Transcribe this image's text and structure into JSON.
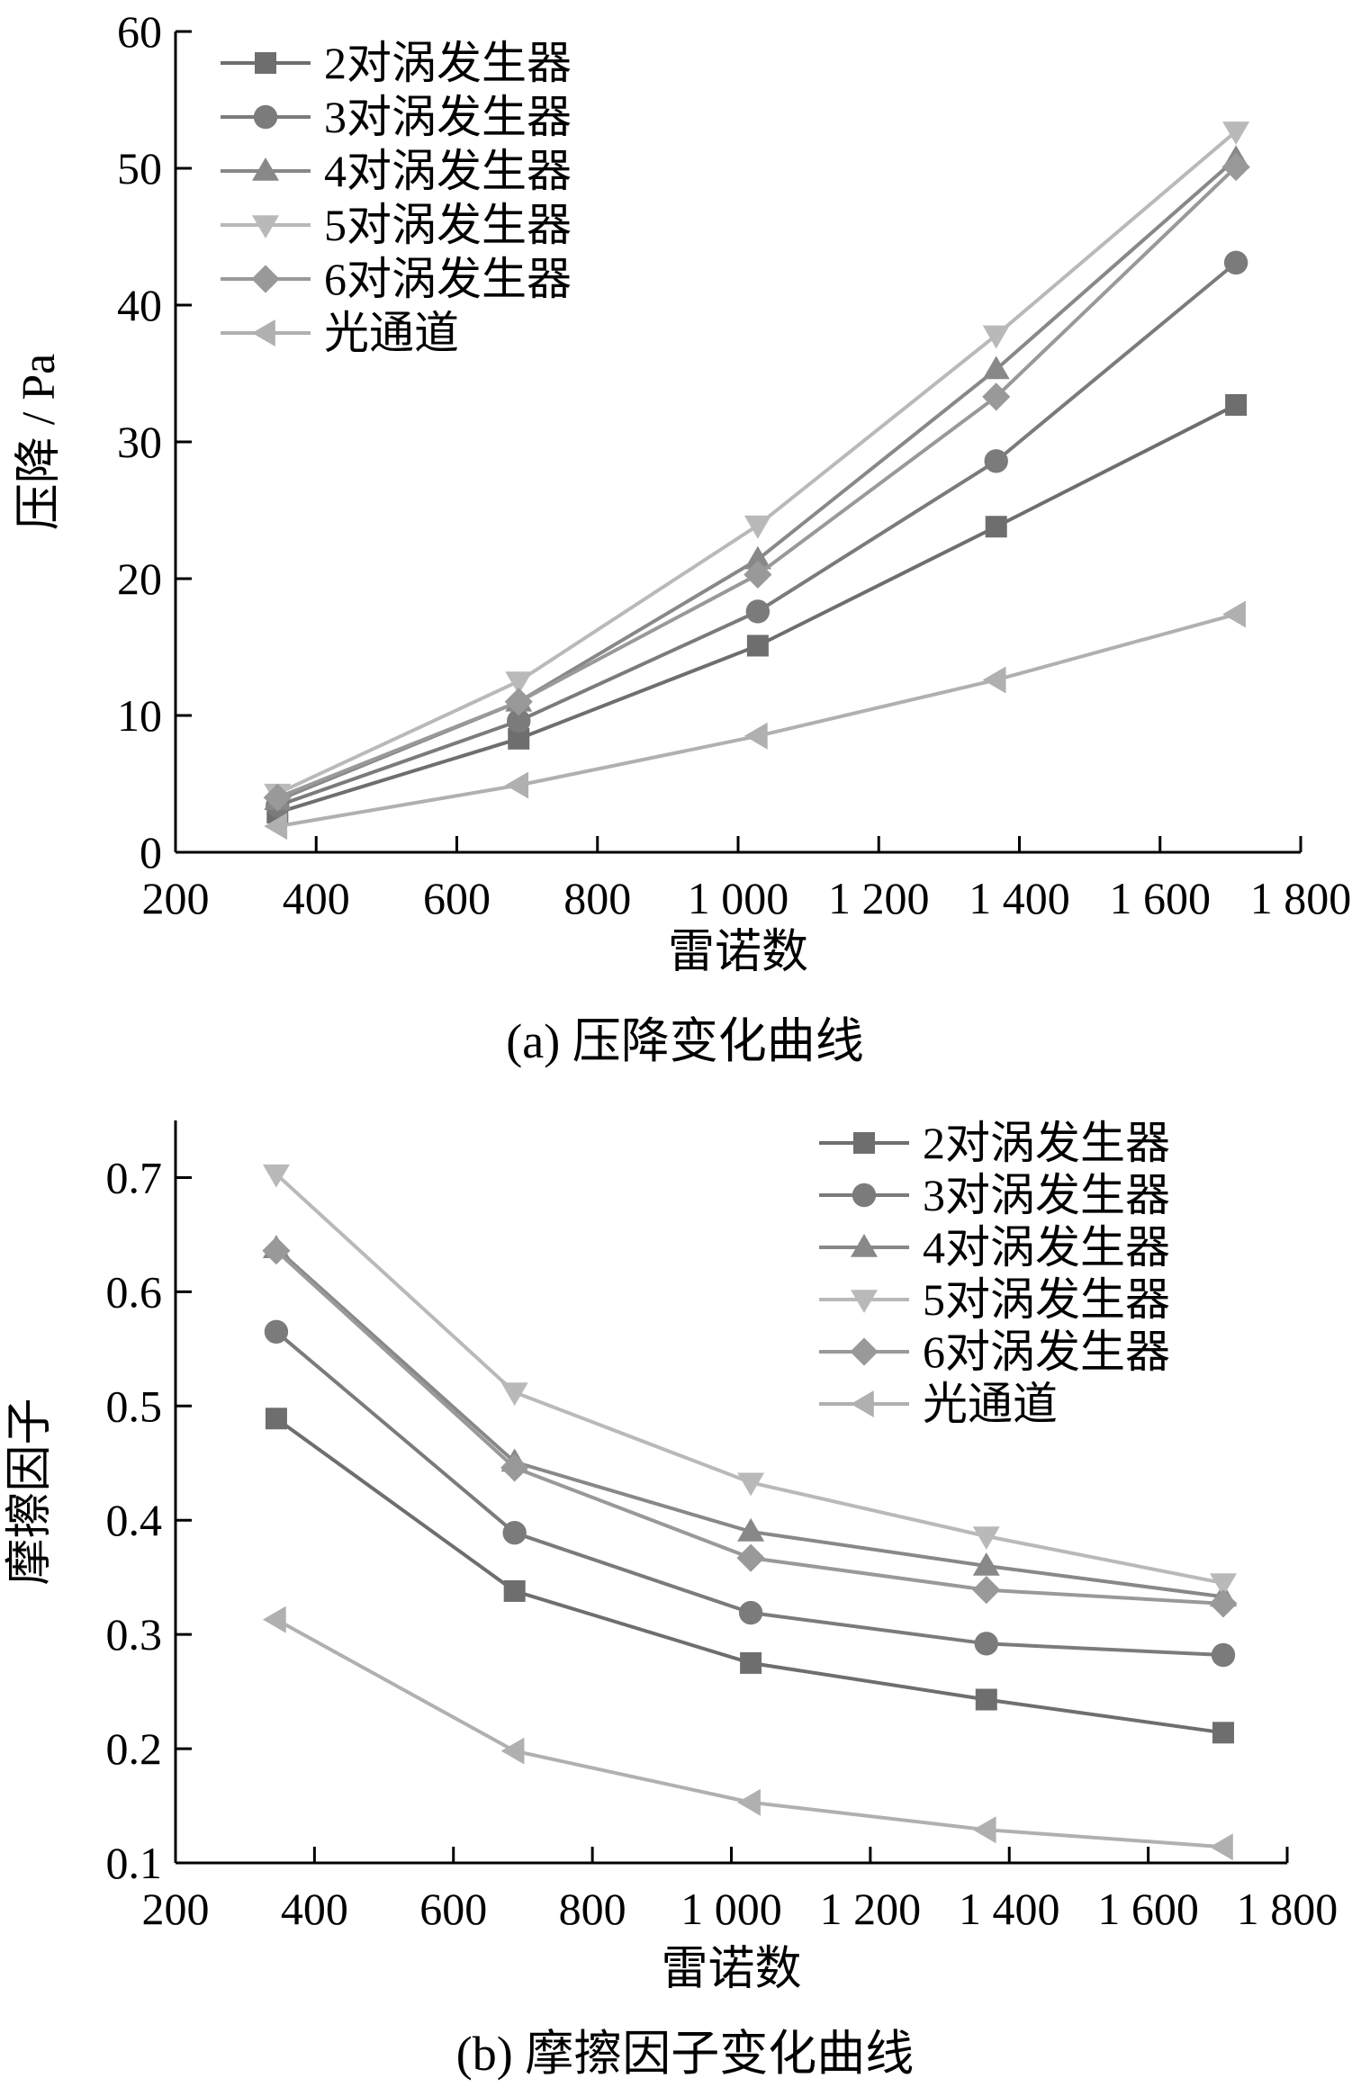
{
  "chart_data": [
    {
      "type": "line",
      "panel": "a",
      "caption": "(a)  压降变化曲线",
      "xlabel": "雷诺数",
      "ylabel": "压降 / Pa",
      "xlim": [
        200,
        1800
      ],
      "ylim": [
        0,
        60
      ],
      "x_ticks": [
        "200",
        "400",
        "600",
        "800",
        "1 000",
        "1 200",
        "1 400",
        "1 600",
        "1 800"
      ],
      "y_ticks": [
        "0",
        "10",
        "20",
        "30",
        "40",
        "50",
        "60"
      ],
      "x": [
        345,
        688,
        1028,
        1367,
        1708
      ],
      "legend_position": "top-left",
      "grid": false,
      "series": [
        {
          "name": "2对涡发生器",
          "marker": "square",
          "color": "#6e6e6e",
          "values": [
            2.9,
            8.3,
            15.1,
            23.8,
            32.7
          ]
        },
        {
          "name": "3对涡发生器",
          "marker": "circle",
          "color": "#7b7b7b",
          "values": [
            3.4,
            9.6,
            17.6,
            28.6,
            43.1
          ]
        },
        {
          "name": "4对涡发生器",
          "marker": "triangle-up",
          "color": "#888888",
          "values": [
            3.8,
            11.0,
            21.4,
            35.3,
            50.7
          ]
        },
        {
          "name": "5对涡发生器",
          "marker": "triangle-down",
          "color": "#b9b9b9",
          "values": [
            4.3,
            12.5,
            23.9,
            37.8,
            52.7
          ]
        },
        {
          "name": "6对涡发生器",
          "marker": "diamond",
          "color": "#999999",
          "values": [
            4.0,
            11.0,
            20.3,
            33.3,
            50.1
          ]
        },
        {
          "name": "光通道",
          "marker": "triangle-left",
          "color": "#b0b0b0",
          "values": [
            1.9,
            4.9,
            8.5,
            12.6,
            17.4
          ]
        }
      ]
    },
    {
      "type": "line",
      "panel": "b",
      "caption": "(b)  摩擦因子变化曲线",
      "xlabel": "雷诺数",
      "ylabel": "摩擦因子",
      "xlim": [
        200,
        1800
      ],
      "ylim": [
        0.1,
        0.75
      ],
      "x_ticks": [
        "200",
        "400",
        "600",
        "800",
        "1 000",
        "1 200",
        "1 400",
        "1 600",
        "1 800"
      ],
      "y_ticks": [
        "0.1",
        "0.2",
        "0.3",
        "0.4",
        "0.5",
        "0.6",
        "0.7"
      ],
      "x": [
        345,
        688,
        1028,
        1367,
        1708
      ],
      "legend_position": "top-right",
      "grid": false,
      "series": [
        {
          "name": "2对涡发生器",
          "marker": "square",
          "color": "#6e6e6e",
          "values": [
            0.489,
            0.338,
            0.275,
            0.243,
            0.214
          ]
        },
        {
          "name": "3对涡发生器",
          "marker": "circle",
          "color": "#7b7b7b",
          "values": [
            0.565,
            0.389,
            0.319,
            0.292,
            0.282
          ]
        },
        {
          "name": "4对涡发生器",
          "marker": "triangle-up",
          "color": "#888888",
          "values": [
            0.638,
            0.451,
            0.39,
            0.36,
            0.333
          ]
        },
        {
          "name": "5对涡发生器",
          "marker": "triangle-down",
          "color": "#b9b9b9",
          "values": [
            0.703,
            0.512,
            0.433,
            0.386,
            0.345
          ]
        },
        {
          "name": "6对涡发生器",
          "marker": "diamond",
          "color": "#999999",
          "values": [
            0.636,
            0.446,
            0.367,
            0.339,
            0.327
          ]
        },
        {
          "name": "光通道",
          "marker": "triangle-left",
          "color": "#b0b0b0",
          "values": [
            0.313,
            0.198,
            0.153,
            0.129,
            0.114
          ]
        }
      ]
    }
  ]
}
